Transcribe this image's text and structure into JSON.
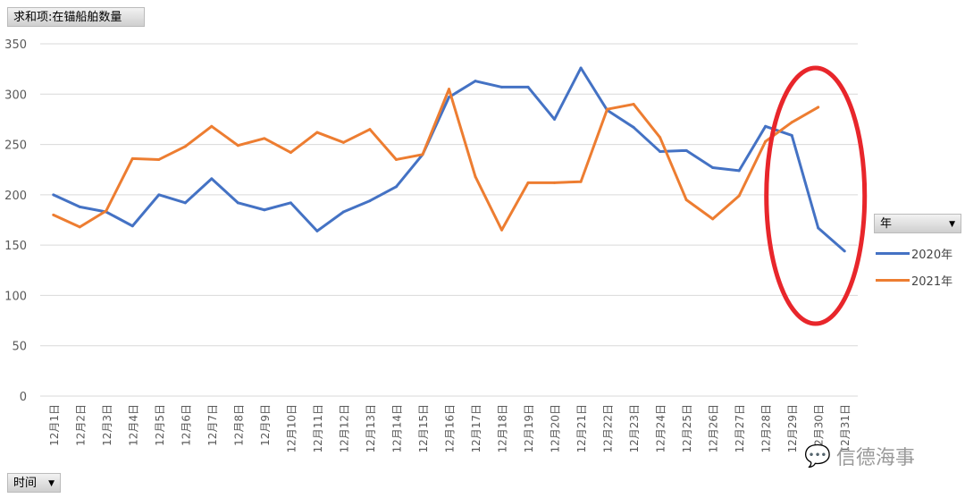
{
  "field_button": {
    "label": "求和项:在锚船舶数量"
  },
  "axis_button": {
    "label": "时间",
    "icon": "dropdown-arrow"
  },
  "legend_button": {
    "label": "年",
    "icon": "dropdown-arrow"
  },
  "watermark": {
    "text": "信德海事",
    "icon": "wechat-icon"
  },
  "colors": {
    "2020": "#4472c4",
    "2021": "#ed7d31",
    "annotation": "#e8262b"
  },
  "chart_data": {
    "type": "line",
    "title": "",
    "ylim": [
      0,
      350
    ],
    "yticks": [
      0,
      50,
      100,
      150,
      200,
      250,
      300,
      350
    ],
    "grid": true,
    "legend_placement": "right",
    "categories": [
      "12月1日",
      "12月2日",
      "12月3日",
      "12月4日",
      "12月5日",
      "12月6日",
      "12月7日",
      "12月8日",
      "12月9日",
      "12月10日",
      "12月11日",
      "12月12日",
      "12月13日",
      "12月14日",
      "12月15日",
      "12月16日",
      "12月17日",
      "12月18日",
      "12月19日",
      "12月20日",
      "12月21日",
      "12月22日",
      "12月23日",
      "12月24日",
      "12月25日",
      "12月26日",
      "12月27日",
      "12月28日",
      "12月29日",
      "12月30日",
      "12月31日"
    ],
    "series": [
      {
        "name": "2020年",
        "values": [
          200,
          188,
          183,
          169,
          200,
          192,
          216,
          192,
          185,
          192,
          164,
          183,
          194,
          208,
          240,
          297,
          313,
          307,
          307,
          275,
          326,
          284,
          267,
          243,
          244,
          227,
          224,
          268,
          259,
          167,
          144
        ]
      },
      {
        "name": "2021年",
        "values": [
          180,
          168,
          184,
          236,
          235,
          248,
          268,
          249,
          256,
          242,
          262,
          252,
          265,
          235,
          240,
          305,
          218,
          165,
          212,
          212,
          213,
          285,
          290,
          257,
          195,
          176,
          199,
          253,
          272,
          287,
          null
        ]
      }
    ],
    "annotation": {
      "shape": "ellipse",
      "around_categories": [
        "12月29日",
        "12月30日",
        "12月31日"
      ]
    }
  }
}
